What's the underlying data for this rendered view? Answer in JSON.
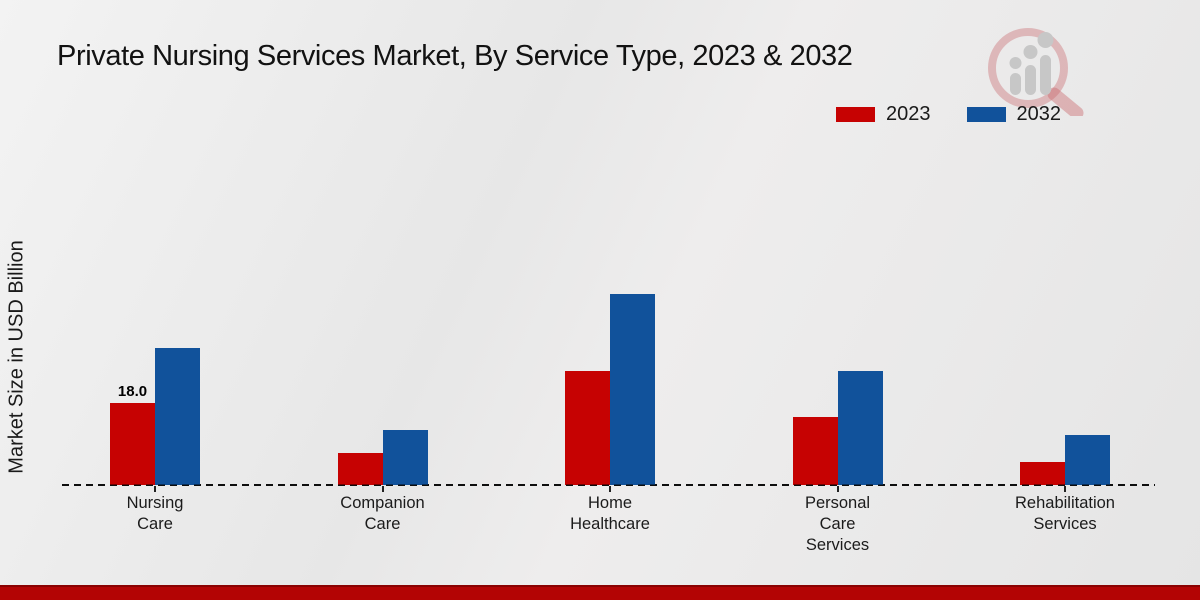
{
  "title": "Private Nursing Services Market, By Service Type, 2023 & 2032",
  "ylabel": "Market Size in USD Billion",
  "colors": {
    "series_2023": "#c60202",
    "series_2032": "#11529b",
    "footer_bar": "#b30404",
    "footer_bar_edge": "#8a0202",
    "text": "#1a1a1a"
  },
  "chart_data": {
    "type": "bar",
    "title": "Private Nursing Services Market, By Service Type, 2023 & 2032",
    "xlabel": "",
    "ylabel": "Market Size in USD Billion",
    "categories": [
      "Nursing Care",
      "Companion Care",
      "Home Healthcare",
      "Personal Care Services",
      "Rehabilitation Services"
    ],
    "series": [
      {
        "name": "2023",
        "color": "#c60202",
        "values": [
          18.0,
          7.0,
          25.0,
          15.0,
          5.0
        ]
      },
      {
        "name": "2032",
        "color": "#11529b",
        "values": [
          30.0,
          12.0,
          42.0,
          25.0,
          11.0
        ]
      }
    ],
    "annotations": [
      {
        "text": "18.0",
        "series_index": 0,
        "category_index": 0
      }
    ],
    "ylim": [
      0,
      45
    ],
    "grid": false,
    "y_axis_ticks_visible": false,
    "baseline_style": "dashed",
    "legend_position": "top-right"
  }
}
